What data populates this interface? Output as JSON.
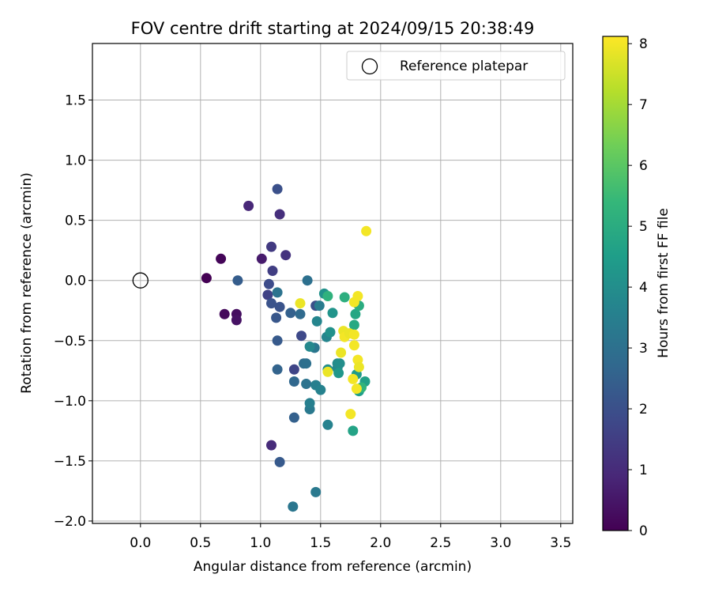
{
  "chart_data": {
    "type": "scatter",
    "title": "FOV centre drift starting at 2024/09/15 20:38:49",
    "xlabel": "Angular distance from reference (arcmin)",
    "ylabel": "Rotation from reference (arcmin)",
    "xlim": [
      -0.4,
      3.6
    ],
    "ylim": [
      -2.02,
      1.97
    ],
    "xticks": [
      0.0,
      0.5,
      1.0,
      1.5,
      2.0,
      2.5,
      3.0,
      3.5
    ],
    "xtick_labels": [
      "0.0",
      "0.5",
      "1.0",
      "1.5",
      "2.0",
      "2.5",
      "3.0",
      "3.5"
    ],
    "yticks": [
      -2.0,
      -1.5,
      -1.0,
      -0.5,
      0.0,
      0.5,
      1.0,
      1.5
    ],
    "ytick_labels": [
      "−2.0",
      "−1.5",
      "−1.0",
      "−0.5",
      "0.0",
      "0.5",
      "1.0",
      "1.5"
    ],
    "grid": true,
    "legend": {
      "position": "top-right",
      "entries": [
        "Reference platepar"
      ]
    },
    "reference_point": {
      "name": "Reference platepar",
      "x": 0.0,
      "y": 0.0
    },
    "colorbar": {
      "label": "Hours from first FF file",
      "range": [
        0,
        8.12
      ],
      "ticks": [
        0,
        1,
        2,
        3,
        4,
        5,
        6,
        7,
        8
      ],
      "colormap": "viridis",
      "colors": [
        "#440154",
        "#482878",
        "#3e4989",
        "#31688e",
        "#26828e",
        "#1f9e89",
        "#35b779",
        "#6ece58",
        "#b5de2b",
        "#fde725"
      ]
    },
    "points": [
      {
        "x": 0.55,
        "y": 0.02,
        "t": 0.0
      },
      {
        "x": 0.67,
        "y": 0.18,
        "t": 0.1
      },
      {
        "x": 0.7,
        "y": -0.28,
        "t": 0.2
      },
      {
        "x": 0.8,
        "y": -0.28,
        "t": 0.3
      },
      {
        "x": 0.8,
        "y": -0.33,
        "t": 0.4
      },
      {
        "x": 1.01,
        "y": 0.18,
        "t": 0.6
      },
      {
        "x": 0.9,
        "y": 0.62,
        "t": 0.9
      },
      {
        "x": 1.09,
        "y": -1.37,
        "t": 1.0
      },
      {
        "x": 1.16,
        "y": 0.55,
        "t": 1.1
      },
      {
        "x": 1.21,
        "y": 0.21,
        "t": 1.2
      },
      {
        "x": 1.09,
        "y": 0.28,
        "t": 1.4
      },
      {
        "x": 1.1,
        "y": 0.08,
        "t": 1.5
      },
      {
        "x": 1.06,
        "y": -0.12,
        "t": 1.6
      },
      {
        "x": 1.28,
        "y": -0.74,
        "t": 1.7
      },
      {
        "x": 1.34,
        "y": -0.46,
        "t": 1.8
      },
      {
        "x": 1.07,
        "y": -0.03,
        "t": 1.9
      },
      {
        "x": 1.14,
        "y": 0.76,
        "t": 2.0
      },
      {
        "x": 1.46,
        "y": -0.21,
        "t": 2.0
      },
      {
        "x": 1.09,
        "y": -0.19,
        "t": 2.1
      },
      {
        "x": 1.16,
        "y": -0.22,
        "t": 2.1
      },
      {
        "x": 1.13,
        "y": -0.31,
        "t": 2.2
      },
      {
        "x": 1.14,
        "y": -0.5,
        "t": 2.3
      },
      {
        "x": 1.16,
        "y": -1.51,
        "t": 2.3
      },
      {
        "x": 0.81,
        "y": 0.0,
        "t": 2.4
      },
      {
        "x": 1.28,
        "y": -1.14,
        "t": 2.5
      },
      {
        "x": 1.25,
        "y": -0.27,
        "t": 2.5
      },
      {
        "x": 1.14,
        "y": -0.74,
        "t": 2.6
      },
      {
        "x": 1.28,
        "y": -0.84,
        "t": 2.7
      },
      {
        "x": 1.33,
        "y": -0.28,
        "t": 2.8
      },
      {
        "x": 1.36,
        "y": -0.69,
        "t": 2.9
      },
      {
        "x": 1.38,
        "y": -0.69,
        "t": 3.0
      },
      {
        "x": 1.39,
        "y": 0.0,
        "t": 3.0
      },
      {
        "x": 1.38,
        "y": -0.86,
        "t": 3.1
      },
      {
        "x": 1.14,
        "y": -0.1,
        "t": 3.1
      },
      {
        "x": 1.45,
        "y": -0.56,
        "t": 3.2
      },
      {
        "x": 1.27,
        "y": -1.88,
        "t": 3.2
      },
      {
        "x": 1.41,
        "y": -1.07,
        "t": 3.3
      },
      {
        "x": 1.46,
        "y": -1.76,
        "t": 3.3
      },
      {
        "x": 1.49,
        "y": -0.21,
        "t": 3.4
      },
      {
        "x": 1.41,
        "y": -1.02,
        "t": 3.5
      },
      {
        "x": 1.46,
        "y": -0.87,
        "t": 3.5
      },
      {
        "x": 1.5,
        "y": -0.91,
        "t": 3.6
      },
      {
        "x": 1.56,
        "y": -1.2,
        "t": 3.6
      },
      {
        "x": 1.47,
        "y": -0.34,
        "t": 3.7
      },
      {
        "x": 1.55,
        "y": -0.47,
        "t": 3.7
      },
      {
        "x": 1.41,
        "y": -0.55,
        "t": 3.8
      },
      {
        "x": 1.64,
        "y": -0.73,
        "t": 3.8
      },
      {
        "x": 1.64,
        "y": -0.69,
        "t": 3.9
      },
      {
        "x": 1.66,
        "y": -0.69,
        "t": 4.0
      },
      {
        "x": 1.56,
        "y": -0.74,
        "t": 4.0
      },
      {
        "x": 1.58,
        "y": -0.43,
        "t": 4.1
      },
      {
        "x": 1.53,
        "y": -0.11,
        "t": 4.1
      },
      {
        "x": 1.6,
        "y": -0.27,
        "t": 4.2
      },
      {
        "x": 1.65,
        "y": -0.77,
        "t": 4.3
      },
      {
        "x": 1.8,
        "y": -0.78,
        "t": 4.4
      },
      {
        "x": 1.82,
        "y": -0.92,
        "t": 4.5
      },
      {
        "x": 1.87,
        "y": -0.84,
        "t": 4.6
      },
      {
        "x": 1.77,
        "y": -1.25,
        "t": 4.7
      },
      {
        "x": 1.79,
        "y": -0.28,
        "t": 4.8
      },
      {
        "x": 1.78,
        "y": -0.37,
        "t": 4.9
      },
      {
        "x": 1.82,
        "y": -0.21,
        "t": 5.0
      },
      {
        "x": 1.7,
        "y": -0.14,
        "t": 5.1
      },
      {
        "x": 1.56,
        "y": -0.13,
        "t": 5.2
      },
      {
        "x": 1.84,
        "y": -0.89,
        "t": 5.3
      },
      {
        "x": 1.88,
        "y": 0.41,
        "t": 8.0
      },
      {
        "x": 1.33,
        "y": -0.19,
        "t": 7.9
      },
      {
        "x": 1.81,
        "y": -0.13,
        "t": 8.0
      },
      {
        "x": 1.78,
        "y": -0.18,
        "t": 8.0
      },
      {
        "x": 1.69,
        "y": -0.42,
        "t": 7.9
      },
      {
        "x": 1.7,
        "y": -0.47,
        "t": 8.0
      },
      {
        "x": 1.74,
        "y": -0.44,
        "t": 7.9
      },
      {
        "x": 1.78,
        "y": -0.45,
        "t": 8.0
      },
      {
        "x": 1.78,
        "y": -0.54,
        "t": 8.0
      },
      {
        "x": 1.67,
        "y": -0.6,
        "t": 7.9
      },
      {
        "x": 1.81,
        "y": -0.66,
        "t": 8.0
      },
      {
        "x": 1.82,
        "y": -0.72,
        "t": 7.9
      },
      {
        "x": 1.77,
        "y": -0.82,
        "t": 8.0
      },
      {
        "x": 1.8,
        "y": -0.9,
        "t": 8.0
      },
      {
        "x": 1.75,
        "y": -1.11,
        "t": 8.0
      },
      {
        "x": 1.56,
        "y": -0.76,
        "t": 7.9
      }
    ]
  }
}
